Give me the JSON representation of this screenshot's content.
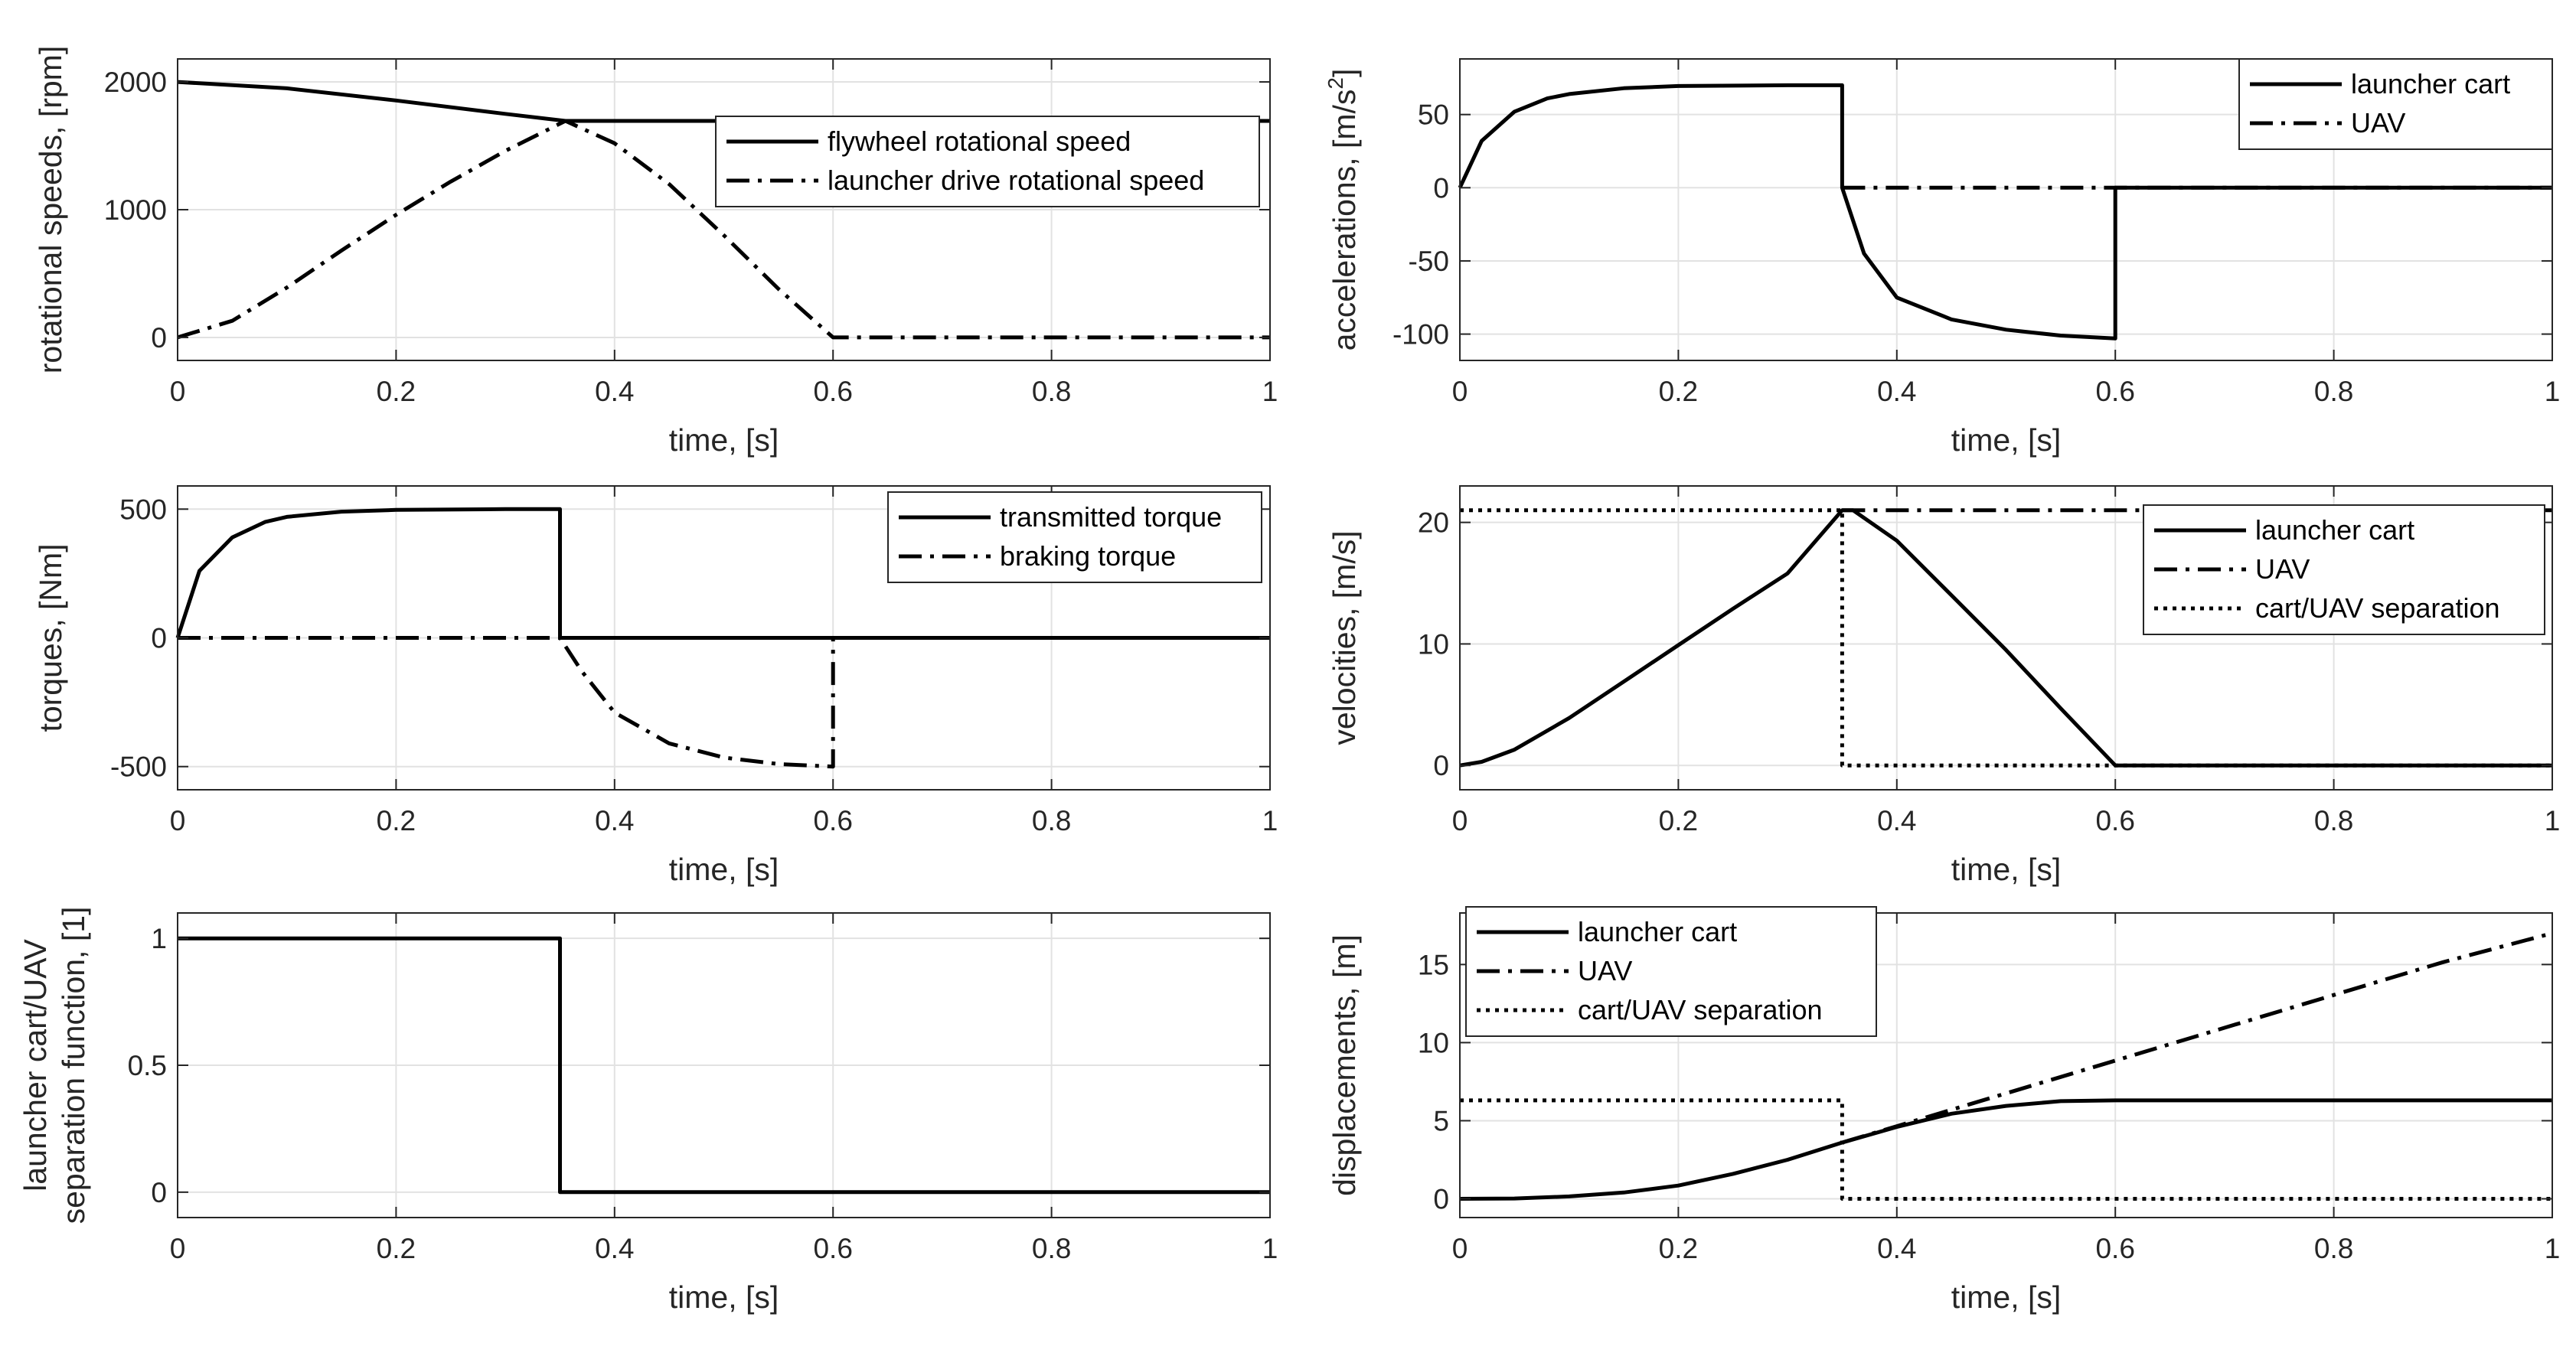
{
  "figure": {
    "xlabel": "time, [s]"
  },
  "chart_data": [
    {
      "type": "line",
      "ylabel": "rotational speeds, [rpm]",
      "xlim": [
        0,
        1
      ],
      "ylim": [
        -180,
        2180
      ],
      "xticks": [
        0,
        0.2,
        0.4,
        0.6,
        0.8,
        1
      ],
      "yticks": [
        0,
        1000,
        2000
      ],
      "grid": true,
      "legend_position": "top-right",
      "series": [
        {
          "name": "flywheel rotational speed",
          "style": "solid",
          "x": [
            0,
            0.1,
            0.2,
            0.3,
            0.355,
            0.5,
            0.7,
            0.9,
            1
          ],
          "y": [
            2000,
            1950,
            1855,
            1750,
            1695,
            1695,
            1695,
            1695,
            1695
          ]
        },
        {
          "name": "launcher drive rotational speed",
          "style": "dashdot",
          "x": [
            0,
            0.05,
            0.1,
            0.15,
            0.2,
            0.25,
            0.3,
            0.355,
            0.4,
            0.45,
            0.5,
            0.55,
            0.6,
            0.8,
            1
          ],
          "y": [
            0,
            130,
            390,
            680,
            960,
            1220,
            1460,
            1695,
            1520,
            1200,
            800,
            380,
            0,
            0,
            0
          ]
        }
      ]
    },
    {
      "type": "line",
      "ylabel": "accelerations, [m/s2]",
      "xlim": [
        0,
        1
      ],
      "ylim": [
        -118,
        88
      ],
      "xticks": [
        0,
        0.2,
        0.4,
        0.6,
        0.8,
        1
      ],
      "yticks": [
        -100,
        -50,
        0,
        50
      ],
      "grid": true,
      "legend_position": "top-right",
      "series": [
        {
          "name": "launcher cart",
          "style": "solid",
          "x": [
            0,
            0.02,
            0.05,
            0.08,
            0.1,
            0.15,
            0.2,
            0.3,
            0.35,
            0.35,
            0.37,
            0.4,
            0.45,
            0.5,
            0.55,
            0.6,
            0.6,
            0.8,
            1
          ],
          "y": [
            0,
            32,
            52,
            61,
            64,
            68,
            69.5,
            70,
            70,
            0,
            -45,
            -75,
            -90,
            -97,
            -101,
            -103,
            0,
            0,
            0
          ]
        },
        {
          "name": "UAV",
          "style": "dashdot",
          "x": [
            0.35,
            0.6,
            1
          ],
          "y": [
            0,
            0,
            0
          ]
        }
      ]
    },
    {
      "type": "line",
      "ylabel": "torques, [Nm]",
      "xlim": [
        0,
        1
      ],
      "ylim": [
        -590,
        590
      ],
      "xticks": [
        0,
        0.2,
        0.4,
        0.6,
        0.8,
        1
      ],
      "yticks": [
        -500,
        0,
        500
      ],
      "grid": true,
      "legend_position": "top-right",
      "series": [
        {
          "name": "transmitted torque",
          "style": "solid",
          "x": [
            0,
            0.02,
            0.05,
            0.08,
            0.1,
            0.15,
            0.2,
            0.3,
            0.35,
            0.35,
            0.6,
            1
          ],
          "y": [
            0,
            260,
            390,
            450,
            470,
            490,
            497,
            500,
            500,
            0,
            0,
            0
          ]
        },
        {
          "name": "braking torque",
          "style": "dashdot",
          "x": [
            0,
            0.35,
            0.37,
            0.4,
            0.45,
            0.5,
            0.55,
            0.6,
            0.6,
            1
          ],
          "y": [
            0,
            0,
            -130,
            -290,
            -410,
            -465,
            -490,
            -500,
            0,
            0
          ]
        }
      ]
    },
    {
      "type": "line",
      "ylabel": "velocities, [m/s]",
      "xlim": [
        0,
        1
      ],
      "ylim": [
        -2,
        23
      ],
      "xticks": [
        0,
        0.2,
        0.4,
        0.6,
        0.8,
        1
      ],
      "yticks": [
        0,
        10,
        20
      ],
      "grid": true,
      "legend_position": "top-right",
      "series": [
        {
          "name": "launcher cart",
          "style": "solid",
          "x": [
            0,
            0.02,
            0.05,
            0.1,
            0.15,
            0.2,
            0.25,
            0.3,
            0.35,
            0.36,
            0.4,
            0.45,
            0.5,
            0.55,
            0.6,
            0.8,
            1
          ],
          "y": [
            0,
            0.3,
            1.3,
            3.9,
            6.9,
            9.9,
            12.9,
            15.8,
            21,
            21,
            18.5,
            14,
            9.5,
            4.7,
            0,
            0,
            0
          ]
        },
        {
          "name": "UAV",
          "style": "dashdot",
          "x": [
            0.35,
            0.6,
            1
          ],
          "y": [
            21,
            21,
            21
          ]
        },
        {
          "name": "cart/UAV separation",
          "style": "dotted",
          "x": [
            0,
            0.35,
            0.35,
            1
          ],
          "y": [
            21,
            21,
            0,
            0
          ]
        }
      ]
    },
    {
      "type": "line",
      "ylabel": "launcher cart/UAV separation function, [1]",
      "ylabel_lines": [
        "launcher cart/UAV",
        "separation function, [1]"
      ],
      "xlim": [
        0,
        1
      ],
      "ylim": [
        -0.1,
        1.1
      ],
      "xticks": [
        0,
        0.2,
        0.4,
        0.6,
        0.8,
        1
      ],
      "yticks": [
        0,
        0.5,
        1
      ],
      "grid": true,
      "legend_position": "none",
      "series": [
        {
          "name": "separation function",
          "style": "solid",
          "x": [
            0,
            0.35,
            0.35,
            1
          ],
          "y": [
            1,
            1,
            0,
            0
          ]
        }
      ]
    },
    {
      "type": "line",
      "ylabel": "displacements, [m]",
      "xlim": [
        0,
        1
      ],
      "ylim": [
        -1.2,
        18.3
      ],
      "xticks": [
        0,
        0.2,
        0.4,
        0.6,
        0.8,
        1
      ],
      "yticks": [
        0,
        5,
        10,
        15
      ],
      "grid": true,
      "legend_position": "top-left",
      "series": [
        {
          "name": "launcher cart",
          "style": "solid",
          "x": [
            0,
            0.05,
            0.1,
            0.15,
            0.2,
            0.25,
            0.3,
            0.35,
            0.4,
            0.45,
            0.5,
            0.55,
            0.6,
            0.8,
            1
          ],
          "y": [
            0,
            0.02,
            0.15,
            0.4,
            0.85,
            1.6,
            2.5,
            3.6,
            4.6,
            5.45,
            5.95,
            6.25,
            6.3,
            6.3,
            6.3
          ]
        },
        {
          "name": "UAV",
          "style": "dashdot",
          "x": [
            0.35,
            0.4,
            0.5,
            0.6,
            0.7,
            0.8,
            0.9,
            1
          ],
          "y": [
            3.6,
            4.65,
            6.75,
            8.85,
            10.95,
            13.05,
            15.15,
            17.0
          ]
        },
        {
          "name": "cart/UAV separation",
          "style": "dotted",
          "x": [
            0,
            0.35,
            0.35,
            1
          ],
          "y": [
            6.3,
            6.3,
            0,
            0
          ]
        }
      ]
    }
  ]
}
